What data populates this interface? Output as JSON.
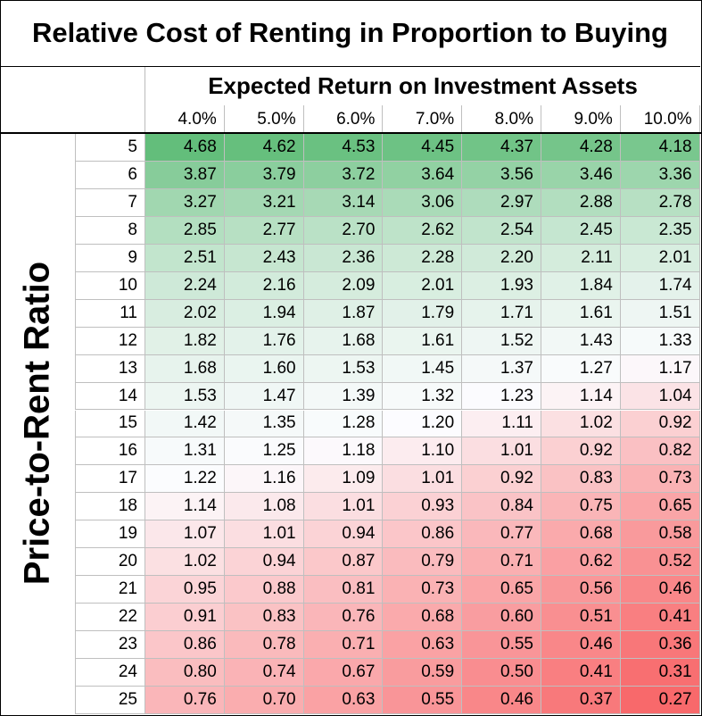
{
  "chart_data": {
    "type": "heatmap",
    "title": "Relative Cost of Renting in Proportion to Buying",
    "column_group_label": "Expected Return on Investment Assets",
    "row_group_label": "Price-to-Rent Ratio",
    "columns": [
      "4.0%",
      "5.0%",
      "6.0%",
      "7.0%",
      "8.0%",
      "9.0%",
      "10.0%"
    ],
    "rows": [
      "5",
      "6",
      "7",
      "8",
      "9",
      "10",
      "11",
      "12",
      "13",
      "14",
      "15",
      "16",
      "17",
      "18",
      "19",
      "20",
      "21",
      "22",
      "23",
      "24",
      "25"
    ],
    "values": [
      [
        "4.68",
        "4.62",
        "4.53",
        "4.45",
        "4.37",
        "4.28",
        "4.18"
      ],
      [
        "3.87",
        "3.79",
        "3.72",
        "3.64",
        "3.56",
        "3.46",
        "3.36"
      ],
      [
        "3.27",
        "3.21",
        "3.14",
        "3.06",
        "2.97",
        "2.88",
        "2.78"
      ],
      [
        "2.85",
        "2.77",
        "2.70",
        "2.62",
        "2.54",
        "2.45",
        "2.35"
      ],
      [
        "2.51",
        "2.43",
        "2.36",
        "2.28",
        "2.20",
        "2.11",
        "2.01"
      ],
      [
        "2.24",
        "2.16",
        "2.09",
        "2.01",
        "1.93",
        "1.84",
        "1.74"
      ],
      [
        "2.02",
        "1.94",
        "1.87",
        "1.79",
        "1.71",
        "1.61",
        "1.51"
      ],
      [
        "1.82",
        "1.76",
        "1.68",
        "1.61",
        "1.52",
        "1.43",
        "1.33"
      ],
      [
        "1.68",
        "1.60",
        "1.53",
        "1.45",
        "1.37",
        "1.27",
        "1.17"
      ],
      [
        "1.53",
        "1.47",
        "1.39",
        "1.32",
        "1.23",
        "1.14",
        "1.04"
      ],
      [
        "1.42",
        "1.35",
        "1.28",
        "1.20",
        "1.11",
        "1.02",
        "0.92"
      ],
      [
        "1.31",
        "1.25",
        "1.18",
        "1.10",
        "1.01",
        "0.92",
        "0.82"
      ],
      [
        "1.22",
        "1.16",
        "1.09",
        "1.01",
        "0.92",
        "0.83",
        "0.73"
      ],
      [
        "1.14",
        "1.08",
        "1.01",
        "0.93",
        "0.84",
        "0.75",
        "0.65"
      ],
      [
        "1.07",
        "1.01",
        "0.94",
        "0.86",
        "0.77",
        "0.68",
        "0.58"
      ],
      [
        "1.02",
        "0.94",
        "0.87",
        "0.79",
        "0.71",
        "0.62",
        "0.52"
      ],
      [
        "0.95",
        "0.88",
        "0.81",
        "0.73",
        "0.65",
        "0.56",
        "0.46"
      ],
      [
        "0.91",
        "0.83",
        "0.76",
        "0.68",
        "0.60",
        "0.51",
        "0.41"
      ],
      [
        "0.86",
        "0.78",
        "0.71",
        "0.63",
        "0.55",
        "0.46",
        "0.36"
      ],
      [
        "0.80",
        "0.74",
        "0.67",
        "0.59",
        "0.50",
        "0.41",
        "0.31"
      ],
      [
        "0.76",
        "0.70",
        "0.63",
        "0.55",
        "0.46",
        "0.37",
        "0.27"
      ]
    ],
    "color_scale": {
      "low_color": "#f8696b",
      "mid_color": "#fcfcff",
      "high_color": "#63be7b"
    }
  }
}
